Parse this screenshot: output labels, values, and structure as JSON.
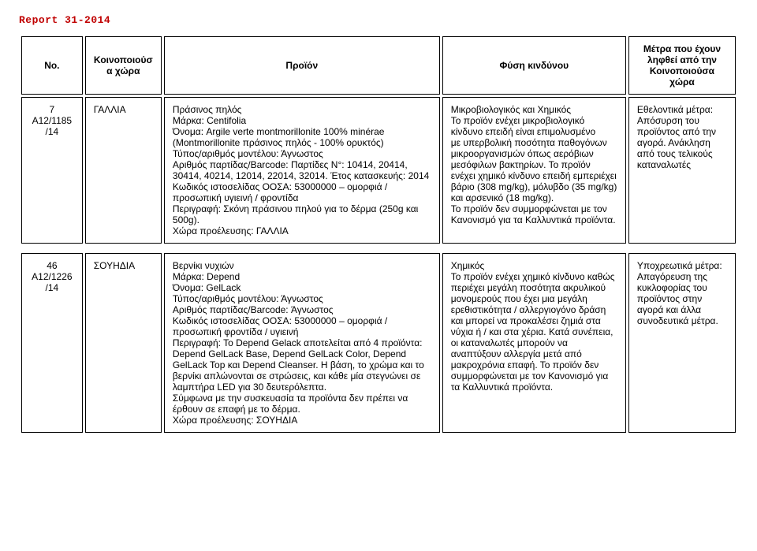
{
  "report_title": "Report 31-2014",
  "headers": {
    "no": "No.",
    "country": "Κοινοποιούσα χώρα",
    "product": "Προϊόν",
    "danger": "Φύση κινδύνου",
    "measures": "Μέτρα που έχουν ληφθεί από την Κοινοποιούσα χώρα"
  },
  "rows": [
    {
      "no": "7\nA12/1185\n/14",
      "country": "ΓΑΛΛΙΑ",
      "product": "Πράσινος πηλός\nΜάρκα: Centifolia\nΌνομα: Argile verte montmorillonite 100% minérae (Montmorillonite  πράσινος πηλός - 100% ορυκτός)\nΤύπος/αριθμός μοντέλου: Άγνωστος\nΑριθμός παρτίδας/Barcode: Παρτίδες N°: 10414, 20414, 30414, 40214, 12014, 22014, 32014. Έτος κατασκευής: 2014 Κωδικός ιστοσελίδας ΟΟΣΑ: 53000000 – ομορφιά / προσωπική υγιεινή / φροντίδα\nΠεριγραφή: Σκόνη  πράσινου πηλού για το δέρμα (250g και 500g).\nΧώρα προέλευσης: ΓΑΛΛΙΑ",
      "danger": "Μικροβιολογικός και Χημικός\nΤο προϊόν ενέχει μικροβιολογικό κίνδυνο  επειδή είναι επιμολυσμένο\nμε υπερβολική ποσότητα παθογόνων μικροοργανισμών όπως αερόβιων μεσόφιλων βακτηρίων. Το προϊόν ενέχει χημικό κίνδυνο επειδή εμπεριέχει βάριο (308 mg/kg), μόλυβδο (35 mg/kg) και αρσενικό (18 mg/kg).\nΤο προϊόν δεν συμμορφώνεται με τον Κανονισμό για τα Καλλυντικά προϊόντα.",
      "measures": "Εθελοντικά μέτρα: Απόσυρση του προϊόντος από την αγορά. Ανάκληση από τους τελικούς καταναλωτές"
    },
    {
      "no": "46\nA12/1226\n/14",
      "country": "ΣΟΥΗΔΙΑ",
      "product": "Βερνίκι νυχιών\nΜάρκα: Depend\nΌνομα: GelLack\nΤύπος/αριθμός μοντέλου: Άγνωστος\nΑριθμός παρτίδας/Barcode: Άγνωστος\nΚωδικός ιστοσελίδας ΟΟΣΑ: 53000000 – ομορφιά / προσωπική φροντίδα / υγιεινή\nΠεριγραφή: Το Depend Gelack αποτελείται από 4 προϊόντα: Depend GelLack Base, Depend GelLack Color, Depend GelLack Top και Depend Cleanser. Η βάση, το χρώμα και το βερνίκι απλώνονται σε στρώσεις, και κάθε μία στεγνώνει σε λαμπτήρα LED για 30 δευτερόλεπτα.\nΣύμφωνα με την συσκευασία τα προϊόντα δεν πρέπει να έρθουν σε επαφή με το δέρμα.\nΧώρα προέλευσης: ΣΟΥΗΔΙΑ",
      "danger": "Χημικός\nΤο προϊόν ενέχει χημικό κίνδυνο καθώς περιέχει μεγάλη ποσότητα ακρυλικού μονομερούς που έχει μια μεγάλη ερεθιστικότητα / αλλεργιογόνο δράση και μπορεί να προκαλέσει ζημιά στα νύχια ή / και στα χέρια. Κατά συνέπεια, οι καταναλωτές μπορούν να αναπτύξουν αλλεργία μετά από μακροχρόνια επαφή. Το προϊόν δεν συμμορφώνεται με τον Κανονισμό για τα Καλλυντικά προϊόντα.",
      "measures": "Υποχρεωτικά μέτρα: Απαγόρευση της κυκλοφορίας του προϊόντος στην αγορά και άλλα συνοδευτικά μέτρα."
    }
  ]
}
